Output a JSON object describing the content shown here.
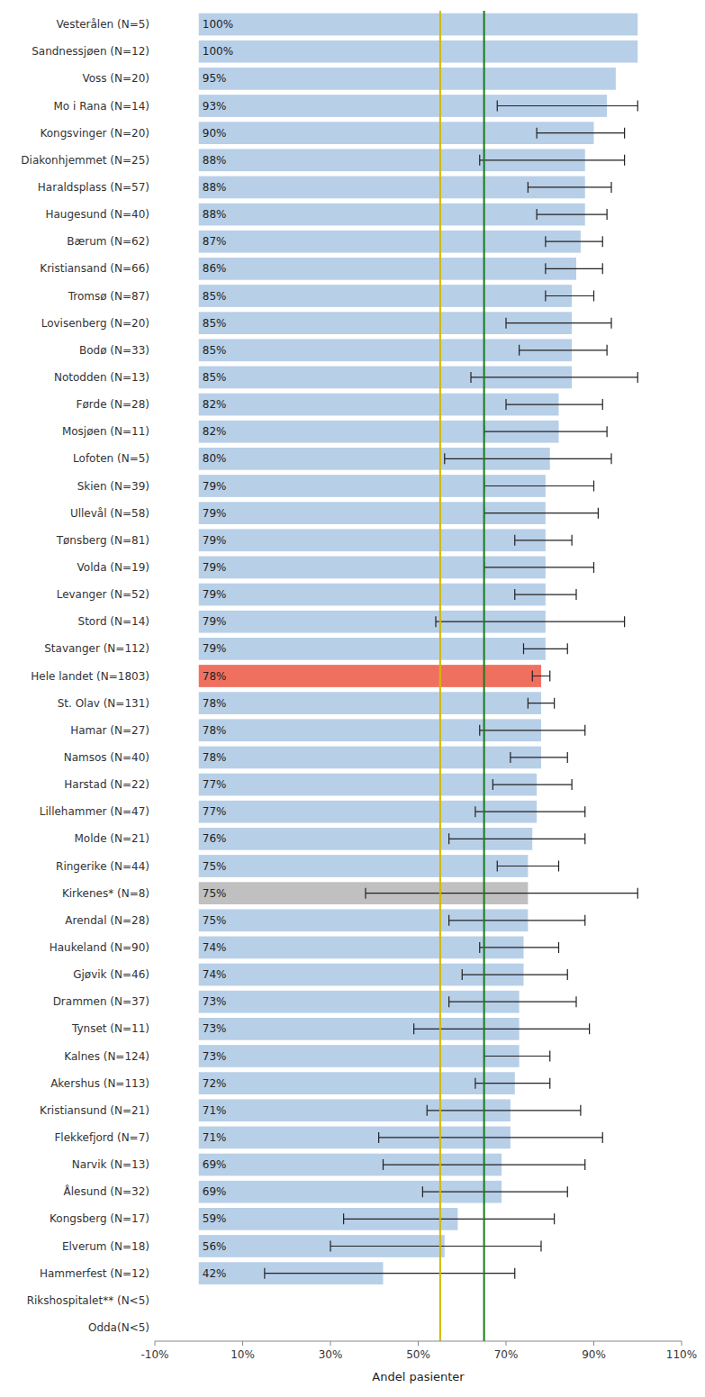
{
  "chart_data": {
    "type": "bar",
    "orientation": "horizontal",
    "xlabel": "Andel pasienter",
    "categories": [
      "Vesterålen (N=5)",
      "Sandnessjøen (N=12)",
      "Voss (N=20)",
      "Mo i Rana (N=14)",
      "Kongsvinger (N=20)",
      "Diakonhjemmet (N=25)",
      "Haraldsplass (N=57)",
      "Haugesund (N=40)",
      "Bærum (N=62)",
      "Kristiansand (N=66)",
      "Tromsø (N=87)",
      "Lovisenberg (N=20)",
      "Bodø (N=33)",
      "Notodden (N=13)",
      "Førde (N=28)",
      "Mosjøen (N=11)",
      "Lofoten (N=5)",
      "Skien (N=39)",
      "Ullevål (N=58)",
      "Tønsberg (N=81)",
      "Volda (N=19)",
      "Levanger (N=52)",
      "Stord (N=14)",
      "Stavanger (N=112)",
      "Hele landet (N=1803)",
      "St. Olav (N=131)",
      "Hamar (N=27)",
      "Namsos (N=40)",
      "Harstad (N=22)",
      "Lillehammer (N=47)",
      "Molde (N=21)",
      "Ringerike (N=44)",
      "Kirkenes* (N=8)",
      "Arendal (N=28)",
      "Haukeland (N=90)",
      "Gjøvik (N=46)",
      "Drammen (N=37)",
      "Tynset (N=11)",
      "Kalnes (N=124)",
      "Akershus (N=113)",
      "Kristiansund (N=21)",
      "Flekkefjord (N=7)",
      "Narvik (N=13)",
      "Ålesund (N=32)",
      "Kongsberg (N=17)",
      "Elverum (N=18)",
      "Hammerfest (N=12)",
      "Rikshospitalet** (N<5)",
      "Odda(N<5)"
    ],
    "values": [
      100,
      100,
      95,
      93,
      90,
      88,
      88,
      88,
      87,
      86,
      85,
      85,
      85,
      85,
      82,
      82,
      80,
      79,
      79,
      79,
      79,
      79,
      79,
      79,
      78,
      78,
      78,
      78,
      77,
      77,
      76,
      75,
      75,
      75,
      74,
      74,
      73,
      73,
      73,
      72,
      71,
      71,
      69,
      69,
      59,
      56,
      42,
      null,
      null
    ],
    "value_labels": [
      "100%",
      "100%",
      "95%",
      "93%",
      "90%",
      "88%",
      "88%",
      "88%",
      "87%",
      "86%",
      "85%",
      "85%",
      "85%",
      "85%",
      "82%",
      "82%",
      "80%",
      "79%",
      "79%",
      "79%",
      "79%",
      "79%",
      "79%",
      "79%",
      "78%",
      "78%",
      "78%",
      "78%",
      "77%",
      "77%",
      "76%",
      "75%",
      "75%",
      "75%",
      "74%",
      "74%",
      "73%",
      "73%",
      "73%",
      "72%",
      "71%",
      "71%",
      "69%",
      "69%",
      "59%",
      "56%",
      "42%",
      null,
      null
    ],
    "ci_low": [
      null,
      null,
      null,
      68,
      77,
      64,
      75,
      77,
      79,
      79,
      79,
      70,
      73,
      62,
      70,
      65,
      56,
      65,
      65,
      72,
      65,
      72,
      54,
      74,
      76,
      75,
      64,
      71,
      67,
      63,
      57,
      68,
      38,
      57,
      64,
      60,
      57,
      49,
      65,
      63,
      52,
      41,
      42,
      51,
      33,
      30,
      15,
      null,
      null
    ],
    "ci_high": [
      null,
      null,
      null,
      100,
      97,
      97,
      94,
      93,
      92,
      92,
      90,
      94,
      93,
      100,
      92,
      93,
      94,
      90,
      91,
      85,
      90,
      86,
      97,
      84,
      80,
      81,
      88,
      84,
      85,
      88,
      88,
      82,
      100,
      88,
      82,
      84,
      86,
      89,
      80,
      80,
      87,
      92,
      88,
      84,
      81,
      78,
      72,
      null,
      null
    ],
    "colors": [
      "#b8cfe8",
      "#b8cfe8",
      "#b8cfe8",
      "#b8cfe8",
      "#b8cfe8",
      "#b8cfe8",
      "#b8cfe8",
      "#b8cfe8",
      "#b8cfe8",
      "#b8cfe8",
      "#b8cfe8",
      "#b8cfe8",
      "#b8cfe8",
      "#b8cfe8",
      "#b8cfe8",
      "#b8cfe8",
      "#b8cfe8",
      "#b8cfe8",
      "#b8cfe8",
      "#b8cfe8",
      "#b8cfe8",
      "#b8cfe8",
      "#b8cfe8",
      "#b8cfe8",
      "#f07060",
      "#b8cfe8",
      "#b8cfe8",
      "#b8cfe8",
      "#b8cfe8",
      "#b8cfe8",
      "#b8cfe8",
      "#b8cfe8",
      "#c0c0c0",
      "#b8cfe8",
      "#b8cfe8",
      "#b8cfe8",
      "#b8cfe8",
      "#b8cfe8",
      "#b8cfe8",
      "#b8cfe8",
      "#b8cfe8",
      "#b8cfe8",
      "#b8cfe8",
      "#b8cfe8",
      "#b8cfe8",
      "#b8cfe8",
      "#b8cfe8",
      "#b8cfe8",
      "#b8cfe8"
    ],
    "data_labels": true,
    "reference_lines": [
      {
        "value": 55,
        "color": "#d4b800"
      },
      {
        "value": 65,
        "color": "#1a7a1a"
      }
    ],
    "xlim": [
      -10,
      110
    ],
    "xticks": [
      {
        "value": -10,
        "label": "-10%"
      },
      {
        "value": 10,
        "label": "10%"
      },
      {
        "value": 30,
        "label": "30%"
      },
      {
        "value": 50,
        "label": "50%"
      },
      {
        "value": 70,
        "label": "70%"
      },
      {
        "value": 90,
        "label": "90%"
      },
      {
        "value": 110,
        "label": "110%"
      }
    ],
    "grid": false
  }
}
